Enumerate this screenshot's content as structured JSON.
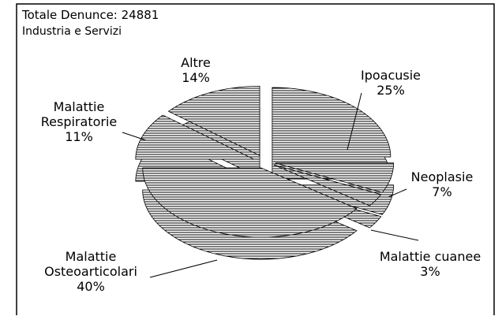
{
  "chart_data": {
    "type": "pie",
    "title": "Totale Denunce:  24881",
    "subtitle": "Industria e Servizi",
    "categories": [
      "Ipoacusie",
      "Neoplasie",
      "Malattie cuanee",
      "Malattie Osteoarticolari",
      "Malattie Respiratorie",
      "Altre"
    ],
    "values": [
      25,
      7,
      3,
      40,
      11,
      14
    ],
    "value_labels": [
      "25%",
      "7%",
      "3%",
      "40%",
      "11%",
      "14%"
    ],
    "color": "#000000"
  }
}
